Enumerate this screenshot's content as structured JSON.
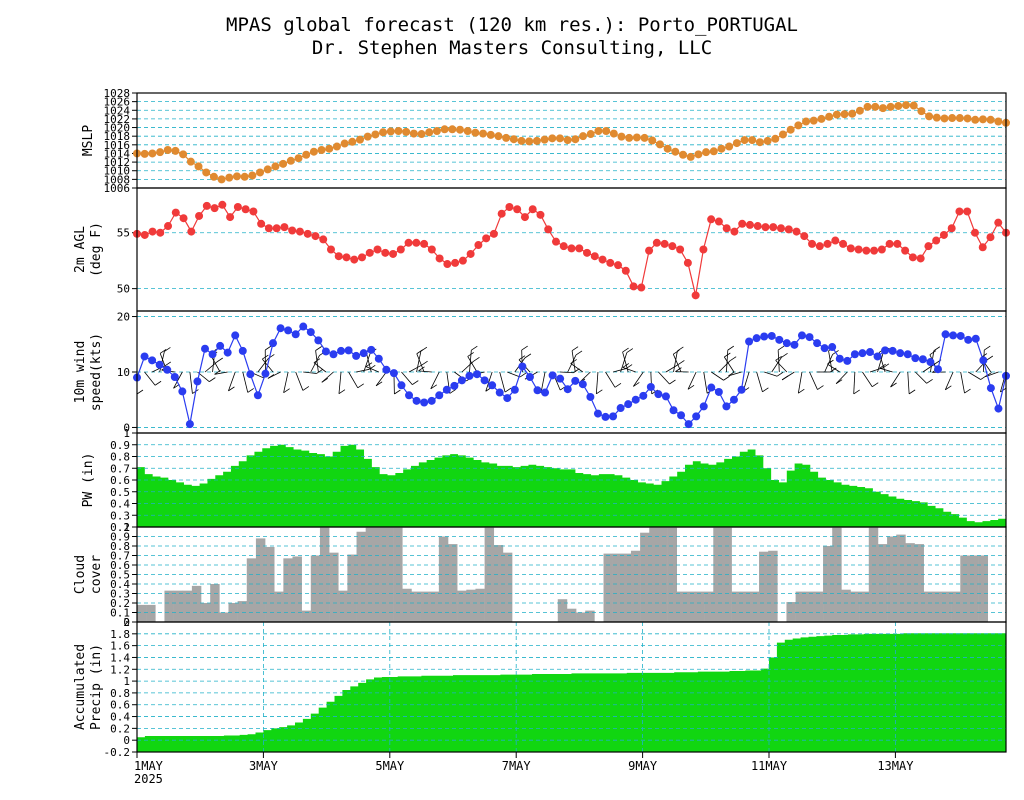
{
  "title_line1": "MPAS global forecast (120 km res.): Porto_PORTUGAL",
  "title_line2": "Dr. Stephen Masters Consulting, LLC",
  "colors": {
    "mslp": "#e08a30",
    "temp": "#f03a3a",
    "wind": "#2a3cf0",
    "fill": "#11d611",
    "cloud": "#a6a6a6",
    "grid": "#20b0c8"
  },
  "x_axis": {
    "ticks": [
      {
        "label": "1MAY",
        "day": 0
      },
      {
        "label": "3MAY",
        "day": 2
      },
      {
        "label": "5MAY",
        "day": 4
      },
      {
        "label": "7MAY",
        "day": 6
      },
      {
        "label": "9MAY",
        "day": 8
      },
      {
        "label": "11MAY",
        "day": 10
      },
      {
        "label": "13MAY",
        "day": 12
      }
    ],
    "year_label": "2025"
  },
  "chart_data": [
    {
      "type": "line",
      "id": "mslp",
      "ylabel": [
        "MSLP"
      ],
      "ylim": [
        1006,
        1028
      ],
      "yticks": [
        "1006",
        "1008",
        "1010",
        "1012",
        "1014",
        "1016",
        "1018",
        "1020",
        "1022",
        "1024",
        "1026",
        "1028"
      ],
      "x_day_range": [
        0,
        13.75
      ],
      "y": [
        1014.0,
        1013.9,
        1014.0,
        1014.3,
        1014.8,
        1014.6,
        1013.8,
        1012.1,
        1011.0,
        1009.6,
        1008.6,
        1008.0,
        1008.4,
        1008.7,
        1008.6,
        1008.9,
        1009.6,
        1010.3,
        1011.0,
        1011.6,
        1012.3,
        1012.9,
        1013.7,
        1014.4,
        1014.8,
        1015.1,
        1015.6,
        1016.3,
        1016.7,
        1017.2,
        1017.9,
        1018.4,
        1018.9,
        1019.1,
        1019.2,
        1019.0,
        1018.6,
        1018.5,
        1018.9,
        1019.2,
        1019.6,
        1019.6,
        1019.5,
        1019.2,
        1018.8,
        1018.6,
        1018.3,
        1018.0,
        1017.6,
        1017.3,
        1016.9,
        1016.8,
        1016.9,
        1017.2,
        1017.5,
        1017.5,
        1017.1,
        1017.3,
        1018.0,
        1018.5,
        1019.2,
        1019.2,
        1018.6,
        1017.9,
        1017.6,
        1017.7,
        1017.6,
        1017.0,
        1016.1,
        1015.1,
        1014.4,
        1013.7,
        1013.2,
        1013.8,
        1014.3,
        1014.5,
        1015.1,
        1015.6,
        1016.4,
        1017.1,
        1017.1,
        1016.6,
        1016.9,
        1017.4,
        1018.4,
        1019.5,
        1020.5,
        1021.4,
        1021.6,
        1022.0,
        1022.5,
        1023.0,
        1023.1,
        1023.2,
        1023.9,
        1024.8,
        1024.8,
        1024.5,
        1024.8,
        1025.0,
        1025.2,
        1025.1,
        1023.8,
        1022.6,
        1022.3,
        1022.1,
        1022.2,
        1022.2,
        1022.1,
        1021.8,
        1021.9,
        1021.8,
        1021.4,
        1021.1
      ]
    },
    {
      "type": "line",
      "id": "temp",
      "ylabel": [
        "2m AGL",
        "(deg F)"
      ],
      "ylim": [
        48,
        59
      ],
      "yticks": [
        "50",
        "55"
      ],
      "x_day_range": [
        0,
        13.75
      ],
      "y": [
        54.9,
        54.8,
        55.1,
        55.0,
        55.6,
        56.8,
        56.3,
        55.1,
        56.5,
        57.4,
        57.2,
        57.5,
        56.4,
        57.3,
        57.1,
        56.9,
        55.8,
        55.4,
        55.4,
        55.5,
        55.2,
        55.1,
        54.9,
        54.7,
        54.4,
        53.5,
        52.9,
        52.8,
        52.6,
        52.8,
        53.2,
        53.5,
        53.2,
        53.1,
        53.5,
        54.1,
        54.1,
        54.0,
        53.5,
        52.7,
        52.2,
        52.3,
        52.5,
        53.1,
        53.9,
        54.5,
        54.9,
        56.7,
        57.3,
        57.1,
        56.4,
        57.1,
        56.6,
        55.3,
        54.2,
        53.8,
        53.6,
        53.6,
        53.2,
        52.9,
        52.6,
        52.3,
        52.1,
        51.6,
        50.2,
        50.1,
        53.4,
        54.1,
        54.0,
        53.8,
        53.5,
        52.3,
        49.4,
        53.5,
        56.2,
        56.0,
        55.4,
        55.1,
        55.8,
        55.7,
        55.6,
        55.5,
        55.5,
        55.4,
        55.3,
        55.1,
        54.7,
        54.0,
        53.8,
        54.0,
        54.3,
        54.0,
        53.6,
        53.5,
        53.4,
        53.4,
        53.5,
        54.0,
        54.0,
        53.4,
        52.8,
        52.7,
        53.8,
        54.3,
        54.8,
        55.4,
        56.9,
        56.9,
        55.0,
        53.7,
        54.6,
        55.9,
        55.0
      ]
    },
    {
      "type": "line",
      "id": "wind",
      "ylabel": [
        "10m wind",
        "speed(kts)"
      ],
      "ylim": [
        -1,
        21
      ],
      "yticks": [
        "0",
        "10",
        "20"
      ],
      "x_day_range": [
        0,
        13.75
      ],
      "y": [
        9.0,
        12.8,
        12.1,
        11.3,
        10.4,
        9.1,
        6.5,
        0.6,
        8.3,
        14.2,
        13.2,
        14.7,
        13.5,
        16.6,
        13.8,
        9.6,
        5.8,
        9.7,
        15.2,
        17.9,
        17.5,
        16.8,
        18.2,
        17.2,
        15.7,
        13.7,
        13.2,
        13.8,
        13.9,
        12.9,
        13.4,
        14.0,
        12.4,
        10.4,
        9.8,
        7.6,
        5.8,
        4.8,
        4.5,
        4.8,
        5.8,
        6.8,
        7.5,
        8.5,
        9.3,
        9.6,
        8.5,
        7.6,
        6.3,
        5.3,
        6.8,
        11.0,
        9.1,
        6.7,
        6.3,
        9.4,
        8.8,
        6.9,
        8.4,
        7.8,
        5.5,
        2.5,
        1.9,
        2.0,
        3.5,
        4.2,
        5.0,
        5.7,
        7.3,
        6.0,
        5.6,
        3.1,
        2.2,
        0.6,
        2.0,
        3.8,
        7.2,
        6.4,
        3.8,
        5.0,
        6.8,
        15.5,
        16.1,
        16.4,
        16.5,
        15.8,
        15.2,
        14.9,
        16.6,
        16.3,
        15.2,
        14.3,
        14.5,
        12.4,
        12.0,
        13.2,
        13.4,
        13.6,
        12.8,
        13.9,
        13.8,
        13.4,
        13.2,
        12.5,
        12.3,
        11.8,
        10.5,
        16.8,
        16.6,
        16.5,
        15.8,
        16.0,
        12.1,
        7.1,
        3.4,
        9.3
      ]
    },
    {
      "type": "area",
      "id": "pw",
      "ylabel": [
        "PW (in)"
      ],
      "ylim": [
        0.2,
        1.0
      ],
      "yticks": [
        "0.2",
        "0.3",
        "0.4",
        "0.5",
        "0.6",
        "0.7",
        "0.8",
        "0.9",
        "1"
      ],
      "x_day_range": [
        0,
        13.75
      ],
      "y": [
        0.71,
        0.65,
        0.63,
        0.62,
        0.6,
        0.58,
        0.56,
        0.55,
        0.57,
        0.61,
        0.64,
        0.67,
        0.72,
        0.76,
        0.81,
        0.84,
        0.87,
        0.89,
        0.9,
        0.88,
        0.86,
        0.85,
        0.83,
        0.82,
        0.8,
        0.84,
        0.89,
        0.9,
        0.86,
        0.78,
        0.71,
        0.65,
        0.64,
        0.66,
        0.69,
        0.72,
        0.75,
        0.77,
        0.79,
        0.81,
        0.82,
        0.81,
        0.79,
        0.77,
        0.75,
        0.74,
        0.72,
        0.72,
        0.71,
        0.72,
        0.73,
        0.72,
        0.71,
        0.7,
        0.69,
        0.69,
        0.66,
        0.65,
        0.64,
        0.65,
        0.65,
        0.64,
        0.62,
        0.6,
        0.58,
        0.57,
        0.56,
        0.59,
        0.63,
        0.67,
        0.73,
        0.76,
        0.74,
        0.73,
        0.75,
        0.78,
        0.8,
        0.84,
        0.86,
        0.81,
        0.7,
        0.6,
        0.58,
        0.68,
        0.74,
        0.73,
        0.67,
        0.62,
        0.6,
        0.58,
        0.56,
        0.55,
        0.54,
        0.53,
        0.5,
        0.48,
        0.46,
        0.44,
        0.43,
        0.42,
        0.41,
        0.38,
        0.36,
        0.33,
        0.31,
        0.28,
        0.25,
        0.24,
        0.25,
        0.26,
        0.27
      ]
    },
    {
      "type": "bar",
      "id": "cloud",
      "ylabel": [
        "Cloud",
        "cover"
      ],
      "ylim": [
        0.0,
        1.0
      ],
      "yticks": [
        "0",
        "0.1",
        "0.2",
        "0.3",
        "0.4",
        "0.5",
        "0.6",
        "0.7",
        "0.8",
        "0.9",
        "1"
      ],
      "x_day_range": [
        0,
        13.75
      ],
      "y": [
        0.18,
        0.18,
        0.0,
        0.33,
        0.33,
        0.33,
        0.38,
        0.2,
        0.4,
        0.1,
        0.2,
        0.22,
        0.67,
        0.88,
        0.79,
        0.32,
        0.67,
        0.69,
        0.12,
        0.7,
        1.0,
        0.73,
        0.33,
        0.71,
        0.95,
        1.0,
        1.0,
        1.0,
        1.0,
        0.35,
        0.32,
        0.32,
        0.32,
        0.9,
        0.82,
        0.33,
        0.34,
        0.35,
        1.0,
        0.81,
        0.73,
        0.0,
        0.0,
        0.0,
        0.0,
        0.0,
        0.24,
        0.14,
        0.1,
        0.12,
        0.0,
        0.72,
        0.72,
        0.72,
        0.75,
        0.94,
        1.0,
        1.0,
        1.0,
        0.32,
        0.32,
        0.32,
        0.32,
        1.0,
        1.0,
        0.32,
        0.32,
        0.32,
        0.74,
        0.75,
        0.0,
        0.21,
        0.32,
        0.32,
        0.32,
        0.8,
        1.0,
        0.34,
        0.32,
        0.32,
        1.0,
        0.82,
        0.9,
        0.92,
        0.83,
        0.82,
        0.32,
        0.32,
        0.32,
        0.32,
        0.7,
        0.7,
        0.7,
        0.0,
        0.0
      ]
    },
    {
      "type": "area",
      "id": "precip",
      "ylabel": [
        "Accumulated",
        "Precip (in)"
      ],
      "ylim": [
        -0.2,
        2.0
      ],
      "yticks": [
        "-0.2",
        "0",
        "0.2",
        "0.4",
        "0.6",
        "0.8",
        "1",
        "1.2",
        "1.4",
        "1.6",
        "1.8",
        "2"
      ],
      "x_day_range": [
        0,
        13.75
      ],
      "y": [
        0.05,
        0.07,
        0.07,
        0.07,
        0.07,
        0.07,
        0.07,
        0.07,
        0.07,
        0.07,
        0.07,
        0.08,
        0.08,
        0.09,
        0.1,
        0.13,
        0.17,
        0.2,
        0.22,
        0.25,
        0.3,
        0.36,
        0.45,
        0.55,
        0.65,
        0.75,
        0.85,
        0.91,
        0.97,
        1.03,
        1.06,
        1.07,
        1.07,
        1.08,
        1.08,
        1.08,
        1.09,
        1.09,
        1.09,
        1.09,
        1.1,
        1.1,
        1.1,
        1.1,
        1.1,
        1.1,
        1.11,
        1.11,
        1.11,
        1.11,
        1.12,
        1.12,
        1.12,
        1.12,
        1.12,
        1.13,
        1.13,
        1.13,
        1.13,
        1.13,
        1.13,
        1.13,
        1.14,
        1.14,
        1.14,
        1.14,
        1.14,
        1.14,
        1.15,
        1.15,
        1.15,
        1.16,
        1.16,
        1.16,
        1.16,
        1.17,
        1.17,
        1.18,
        1.18,
        1.21,
        1.4,
        1.65,
        1.7,
        1.72,
        1.74,
        1.75,
        1.76,
        1.77,
        1.78,
        1.78,
        1.79,
        1.79,
        1.8,
        1.8,
        1.8,
        1.8,
        1.8,
        1.81,
        1.81,
        1.81,
        1.81,
        1.81,
        1.81,
        1.81,
        1.81,
        1.81,
        1.81,
        1.81,
        1.81,
        1.81
      ]
    }
  ]
}
